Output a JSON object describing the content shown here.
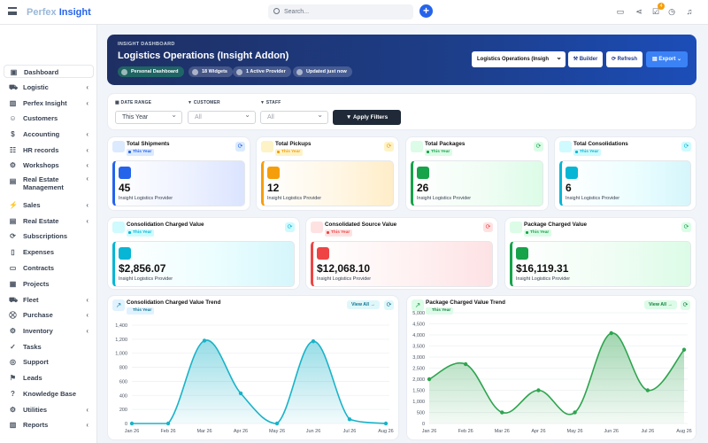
{
  "app": {
    "logo_left": "Perfex",
    "logo_right": "Insight",
    "search_placeholder": "Search...",
    "notification_count": "4"
  },
  "sidebar": {
    "items": [
      {
        "label": "Dashboard",
        "icon": "dashboard-icon",
        "chev": false
      },
      {
        "label": "Logistic",
        "icon": "truck-icon",
        "chev": true
      },
      {
        "label": "Perfex Insight",
        "icon": "chart-icon",
        "chev": true
      },
      {
        "label": "Customers",
        "icon": "user-icon",
        "chev": false
      },
      {
        "label": "Accounting",
        "icon": "dollar-icon",
        "chev": true
      },
      {
        "label": "HR records",
        "icon": "hr-icon",
        "chev": true
      },
      {
        "label": "Workshops",
        "icon": "workshop-icon",
        "chev": true
      },
      {
        "label": "Real Estate Management",
        "icon": "building-icon",
        "chev": true
      },
      {
        "label": "Sales",
        "icon": "sales-icon",
        "chev": true
      },
      {
        "label": "Real Estate",
        "icon": "building-icon",
        "chev": true
      },
      {
        "label": "Subscriptions",
        "icon": "refresh-icon",
        "chev": false
      },
      {
        "label": "Expenses",
        "icon": "file-icon",
        "chev": false
      },
      {
        "label": "Contracts",
        "icon": "contract-icon",
        "chev": false
      },
      {
        "label": "Projects",
        "icon": "projects-icon",
        "chev": false
      },
      {
        "label": "Fleet",
        "icon": "truck-icon",
        "chev": true
      },
      {
        "label": "Purchase",
        "icon": "cart-icon",
        "chev": true
      },
      {
        "label": "Inventory",
        "icon": "gear-icon",
        "chev": true
      },
      {
        "label": "Tasks",
        "icon": "check-circle-icon",
        "chev": false
      },
      {
        "label": "Support",
        "icon": "support-icon",
        "chev": false
      },
      {
        "label": "Leads",
        "icon": "leads-icon",
        "chev": false
      },
      {
        "label": "Knowledge Base",
        "icon": "question-icon",
        "chev": false
      },
      {
        "label": "Utilities",
        "icon": "gear-icon",
        "chev": true
      },
      {
        "label": "Reports",
        "icon": "reports-icon",
        "chev": true
      }
    ]
  },
  "hero": {
    "kicker": "INSIGHT DASHBOARD",
    "title": "Logistics Operations (Insight Addon)",
    "pills": [
      "Personal Dashboard",
      "18 Widgets",
      "1 Active Provider",
      "Updated just now"
    ],
    "select": "Logistics Operations (Insigh",
    "builder": "Builder",
    "refresh": "Refresh",
    "export": "Export"
  },
  "filters": {
    "date_label": "DATE RANGE",
    "date_value": "This Year",
    "customer_label": "CUSTOMER",
    "customer_value": "All",
    "staff_label": "STAFF",
    "staff_value": "All",
    "apply": "Apply Filters"
  },
  "stats": [
    {
      "title": "Total Shipments",
      "badge": "This Year",
      "value": "45",
      "sub": "Insight Logistics Provider",
      "color": "#2563eb"
    },
    {
      "title": "Total Pickups",
      "badge": "This Year",
      "value": "12",
      "sub": "Insight Logistics Provider",
      "color": "#f59e0b"
    },
    {
      "title": "Total Packages",
      "badge": "This Year",
      "value": "26",
      "sub": "Insight Logistics Provider",
      "color": "#16a34a"
    },
    {
      "title": "Total Consolidations",
      "badge": "This Year",
      "value": "6",
      "sub": "Insight Logistics Provider",
      "color": "#06b6d4"
    },
    {
      "title": "Consolidation Charged Value",
      "badge": "This Year",
      "value": "$2,856.07",
      "sub": "Insight Logistics Provider",
      "color": "#06b6d4"
    },
    {
      "title": "Consolidated Source Value",
      "badge": "This Year",
      "value": "$12,068.10",
      "sub": "Insight Logistics Provider",
      "color": "#ef4444"
    },
    {
      "title": "Package Charged Value",
      "badge": "This Year",
      "value": "$16,119.31",
      "sub": "Insight Logistics Provider",
      "color": "#16a34a"
    }
  ],
  "charts": [
    {
      "title": "Consolidation Charged Value Trend",
      "badge": "This Year",
      "view_all": "View All →"
    },
    {
      "title": "Package Charged Value Trend",
      "badge": "This Year",
      "view_all": "View All →"
    }
  ],
  "chart_data": [
    {
      "type": "area",
      "title": "Consolidation Charged Value Trend",
      "x": [
        "Jan 26",
        "Feb 26",
        "Mar 26",
        "Apr 26",
        "May 26",
        "Jun 26",
        "Jul 26",
        "Aug 26"
      ],
      "values": [
        0,
        0,
        1180,
        430,
        0,
        1170,
        60,
        0
      ],
      "ylim": [
        0,
        1400
      ],
      "yticks": [
        "0",
        "200",
        "400",
        "600",
        "800",
        "1,000",
        "1,200",
        "1,400"
      ],
      "color": "#1ab3c8",
      "grid": true
    },
    {
      "type": "area",
      "title": "Package Charged Value Trend",
      "x": [
        "Jan 26",
        "Feb 26",
        "Mar 26",
        "Apr 26",
        "May 26",
        "Jun 26",
        "Jul 26",
        "Aug 26"
      ],
      "values": [
        2000,
        2680,
        500,
        1500,
        500,
        4080,
        1500,
        3330
      ],
      "ylim": [
        0,
        5000
      ],
      "yticks": [
        "0",
        "500",
        "1,000",
        "1,500",
        "2,000",
        "2,500",
        "3,000",
        "3,500",
        "4,000",
        "4,500",
        "5,000"
      ],
      "color": "#2ea44f",
      "grid": true
    }
  ]
}
